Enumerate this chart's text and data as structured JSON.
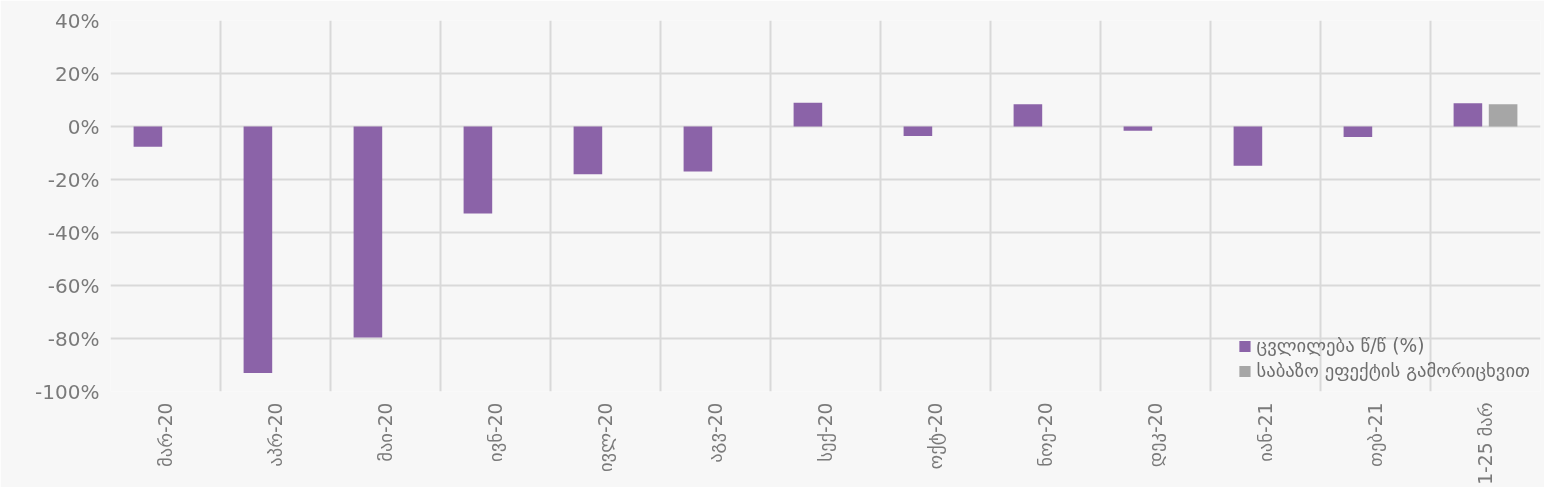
{
  "chart_data": {
    "type": "bar",
    "categories": [
      "მარ-20",
      "აპრ-20",
      "მაი-20",
      "ივნ-20",
      "ივლ-20",
      "აგვ-20",
      "სექ-20",
      "ოქტ-20",
      "ნოე-20",
      "დეკ-20",
      "იან-21",
      "თებ-21",
      "1-25 მარ"
    ],
    "series": [
      {
        "name": "ცვლილება წ/წ (%)",
        "color": "#8b63a8",
        "values": [
          -7.6,
          -93,
          -79.6,
          -32.8,
          -18,
          -17,
          9,
          -3.6,
          8.4,
          -1.6,
          -14.8,
          -4,
          8.8
        ]
      },
      {
        "name": "საბაზო ეფექტის გამორიცხვით",
        "color": "#a6a6a6",
        "values": [
          null,
          null,
          null,
          null,
          null,
          null,
          null,
          null,
          null,
          null,
          null,
          null,
          8.4
        ]
      }
    ],
    "ylim": [
      -100,
      40
    ],
    "yticks": [
      {
        "value": -100,
        "label": "-100%"
      },
      {
        "value": -80,
        "label": "-80%"
      },
      {
        "value": -60,
        "label": "-60%"
      },
      {
        "value": -40,
        "label": "-40%"
      },
      {
        "value": -20,
        "label": "-20%"
      },
      {
        "value": 0,
        "label": "0%"
      },
      {
        "value": 20,
        "label": "20%"
      },
      {
        "value": 40,
        "label": "40%"
      }
    ],
    "grid": true,
    "legend": "bottom right"
  }
}
